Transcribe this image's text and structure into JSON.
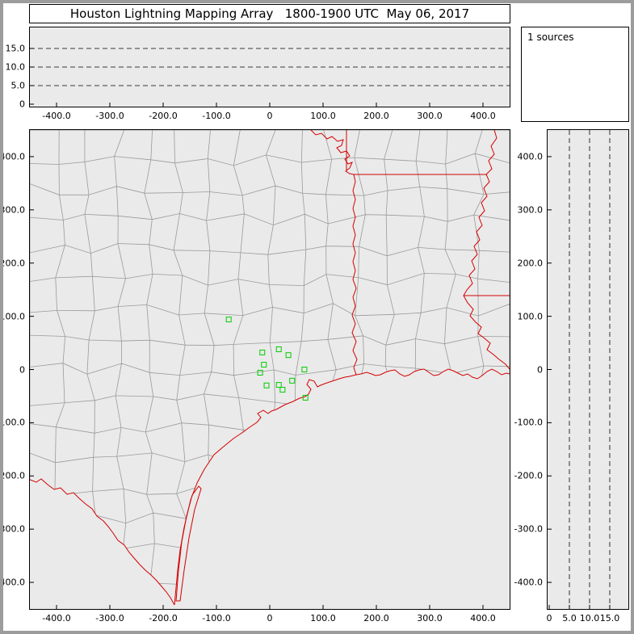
{
  "window": {
    "title": "Houston Lightning Mapping Array   1800-1900 UTC  May 06, 2017"
  },
  "sources_panel": {
    "label": "1 sources"
  },
  "colors": {
    "state_border": "#d40000",
    "county_border": "#9a9a9a",
    "station_marker": "#00cc00",
    "panel_background": "#eaeaea"
  },
  "chart_data": {
    "type": "scatter",
    "title": "Houston Lightning Mapping Array",
    "time_range": "1800-1900 UTC",
    "date": "May 06, 2017",
    "source_count": 1,
    "legend_position": "top-right",
    "grid": "dashed altitude reference lines at 5, 10, 15 km",
    "panels": {
      "altitude_ew": {
        "description": "Altitude (km) vs East-West distance (km)",
        "x_range_km": [
          -450,
          450
        ],
        "y_range_km": [
          0,
          21
        ],
        "x_tick_values": [
          -400,
          -300,
          -200,
          -100,
          0,
          100,
          200,
          300,
          400
        ],
        "x_tick_labels": [
          "-400.0",
          "-300.0",
          "-200.0",
          "-100.0",
          "0",
          "100.0",
          "200.0",
          "300.0",
          "400.0"
        ],
        "y_tick_values": [
          15,
          10,
          5,
          0
        ],
        "y_tick_labels": [
          "15.0",
          "10.0",
          "5.0",
          "0"
        ],
        "dashed_levels_km": [
          5,
          10,
          15
        ],
        "points": []
      },
      "plan_view": {
        "description": "Plan-view map centered on Houston; counties gray, state borders red, LMA stations as green squares",
        "x_range_km": [
          -450,
          450
        ],
        "y_range_km": [
          -450,
          450
        ],
        "x_tick_values": [
          -400,
          -300,
          -200,
          -100,
          0,
          100,
          200,
          300,
          400
        ],
        "x_tick_labels": [
          "-400.0",
          "-300.0",
          "-200.0",
          "-100.0",
          "0",
          "100.0",
          "200.0",
          "300.0",
          "400.0"
        ],
        "y_tick_values": [
          400,
          300,
          200,
          100,
          0,
          -100,
          -200,
          -300,
          -400
        ],
        "y_tick_labels": [
          "400.0",
          "300.0",
          "200.0",
          "100.0",
          "0",
          "-100.0",
          "-200.0",
          "-300.0",
          "-400.0"
        ],
        "station_marker": "hollow-green-square",
        "stations_km": [
          [
            -77,
            94
          ],
          [
            -14,
            32
          ],
          [
            17,
            38
          ],
          [
            35,
            27
          ],
          [
            -11,
            9
          ],
          [
            -18,
            -6
          ],
          [
            65,
            0
          ],
          [
            -6,
            -30
          ],
          [
            17,
            -29
          ],
          [
            42,
            -21
          ],
          [
            24,
            -38
          ],
          [
            67,
            -53
          ]
        ],
        "points": []
      },
      "altitude_ns": {
        "description": "North-South distance (km) vs Altitude (km)",
        "x_range_km": [
          0,
          21
        ],
        "y_range_km": [
          -450,
          450
        ],
        "x_tick_values": [
          0,
          5,
          10,
          15
        ],
        "x_tick_labels": [
          "0",
          "5.0",
          "10.0",
          "15.0"
        ],
        "y_tick_values": [
          400,
          300,
          200,
          100,
          0,
          -100,
          -200,
          -300,
          -400
        ],
        "y_tick_labels": [
          "400.0",
          "300.0",
          "200.0",
          "100.0",
          "0",
          "-100.0",
          "-200.0",
          "-300.0",
          "-400.0"
        ],
        "dashed_levels_km": [
          5,
          10,
          15
        ],
        "points": []
      }
    }
  }
}
